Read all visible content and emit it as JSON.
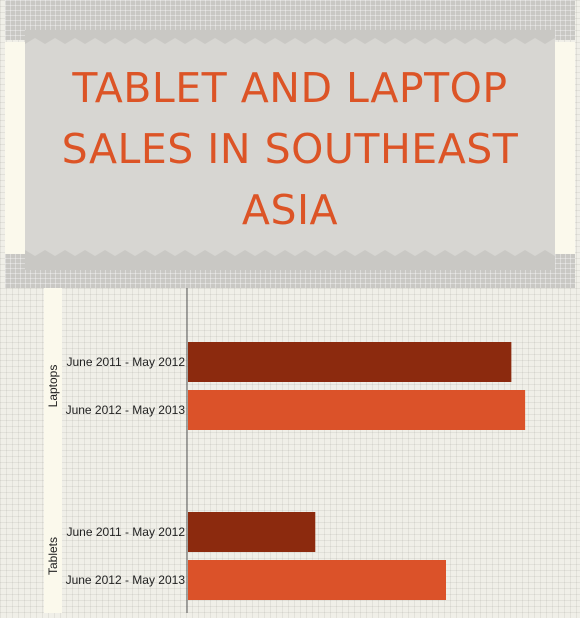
{
  "chart_data": {
    "type": "bar",
    "orientation": "horizontal",
    "title": "TABLET AND LAPTOP SALES IN SOUTHEAST ASIA",
    "groups": [
      "Laptops",
      "Tablets"
    ],
    "categories": [
      "June 2011 - May 2012",
      "June 2012 - May 2013"
    ],
    "series": [
      {
        "group": "Laptops",
        "values": [
          94,
          98
        ]
      },
      {
        "group": "Tablets",
        "values": [
          37,
          75
        ]
      }
    ],
    "xlim": [
      0,
      100
    ],
    "grid": true,
    "colors": {
      "June 2011 - May 2012": "#8c2a0e",
      "June 2012 - May 2013": "#db5229"
    }
  }
}
